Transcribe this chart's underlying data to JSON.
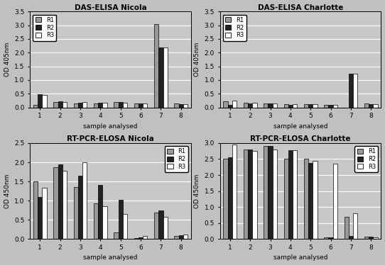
{
  "subplots": [
    {
      "title": "DAS-ELISA Nicola",
      "ylabel": "OD 405nm",
      "xlabel": "sample analysed",
      "ylim": [
        0,
        3.5
      ],
      "yticks": [
        0,
        0.5,
        1.0,
        1.5,
        2.0,
        2.5,
        3.0,
        3.5
      ],
      "categories": [
        1,
        2,
        3,
        4,
        5,
        6,
        7,
        8
      ],
      "R1": [
        0.1,
        0.2,
        0.15,
        0.15,
        0.2,
        0.15,
        3.05,
        0.15
      ],
      "R2": [
        0.48,
        0.22,
        0.18,
        0.18,
        0.2,
        0.15,
        2.18,
        0.12
      ],
      "R3": [
        0.45,
        0.2,
        0.2,
        0.18,
        0.18,
        0.15,
        2.18,
        0.12
      ],
      "legend_loc": "upper left",
      "row": 0,
      "col": 0
    },
    {
      "title": "DAS-ELISA Charlotte",
      "ylabel": "OD 405nm",
      "xlabel": "sample analysed",
      "ylim": [
        0,
        3.5
      ],
      "yticks": [
        0,
        0.5,
        1.0,
        1.5,
        2.0,
        2.5,
        3.0,
        3.5
      ],
      "categories": [
        1,
        2,
        3,
        4,
        5,
        6,
        7,
        8
      ],
      "R1": [
        0.22,
        0.18,
        0.14,
        0.12,
        0.12,
        0.1,
        0.0,
        0.15
      ],
      "R2": [
        0.1,
        0.15,
        0.15,
        0.1,
        0.12,
        0.1,
        1.22,
        0.12
      ],
      "R3": [
        0.25,
        0.18,
        0.15,
        0.12,
        0.12,
        0.1,
        1.22,
        0.12
      ],
      "legend_loc": "upper left",
      "row": 0,
      "col": 1
    },
    {
      "title": "RT-PCR-ELOSA Nicola",
      "ylabel": "OD 450nm",
      "xlabel": "sample analysed",
      "ylim": [
        0,
        2.5
      ],
      "yticks": [
        0,
        0.5,
        1.0,
        1.5,
        2.0,
        2.5
      ],
      "categories": [
        1,
        2,
        3,
        4,
        5,
        6,
        7,
        8
      ],
      "R1": [
        1.5,
        1.88,
        1.35,
        0.93,
        0.18,
        0.03,
        0.68,
        0.08
      ],
      "R2": [
        1.1,
        1.95,
        1.65,
        1.4,
        1.03,
        0.05,
        0.75,
        0.1
      ],
      "R3": [
        1.33,
        1.78,
        2.0,
        0.85,
        0.65,
        0.07,
        0.58,
        0.12
      ],
      "legend_loc": "upper right",
      "row": 1,
      "col": 0
    },
    {
      "title": "RT-PCR-ELOSA Charlotte",
      "ylabel": "OD 450nm",
      "xlabel": "sample analysed",
      "ylim": [
        0,
        3.0
      ],
      "yticks": [
        0,
        0.5,
        1.0,
        1.5,
        2.0,
        2.5,
        3.0
      ],
      "categories": [
        1,
        2,
        3,
        4,
        5,
        6,
        7,
        8
      ],
      "R1": [
        2.52,
        2.8,
        2.9,
        2.5,
        2.5,
        0.05,
        0.7,
        0.08
      ],
      "R2": [
        2.55,
        2.8,
        2.9,
        2.78,
        2.38,
        0.05,
        0.1,
        0.08
      ],
      "R3": [
        2.95,
        2.75,
        2.8,
        2.78,
        2.45,
        2.35,
        0.8,
        0.05
      ],
      "legend_loc": "upper right",
      "row": 1,
      "col": 1
    }
  ],
  "bar_colors": {
    "R1": "#999999",
    "R2": "#222222",
    "R3": "#ffffff"
  },
  "bar_edgecolor": "#000000",
  "plot_bg_color": "#c8c8c8",
  "fig_bg_color": "#c0c0c0",
  "fig_width": 5.42,
  "fig_height": 3.74,
  "dpi": 100
}
